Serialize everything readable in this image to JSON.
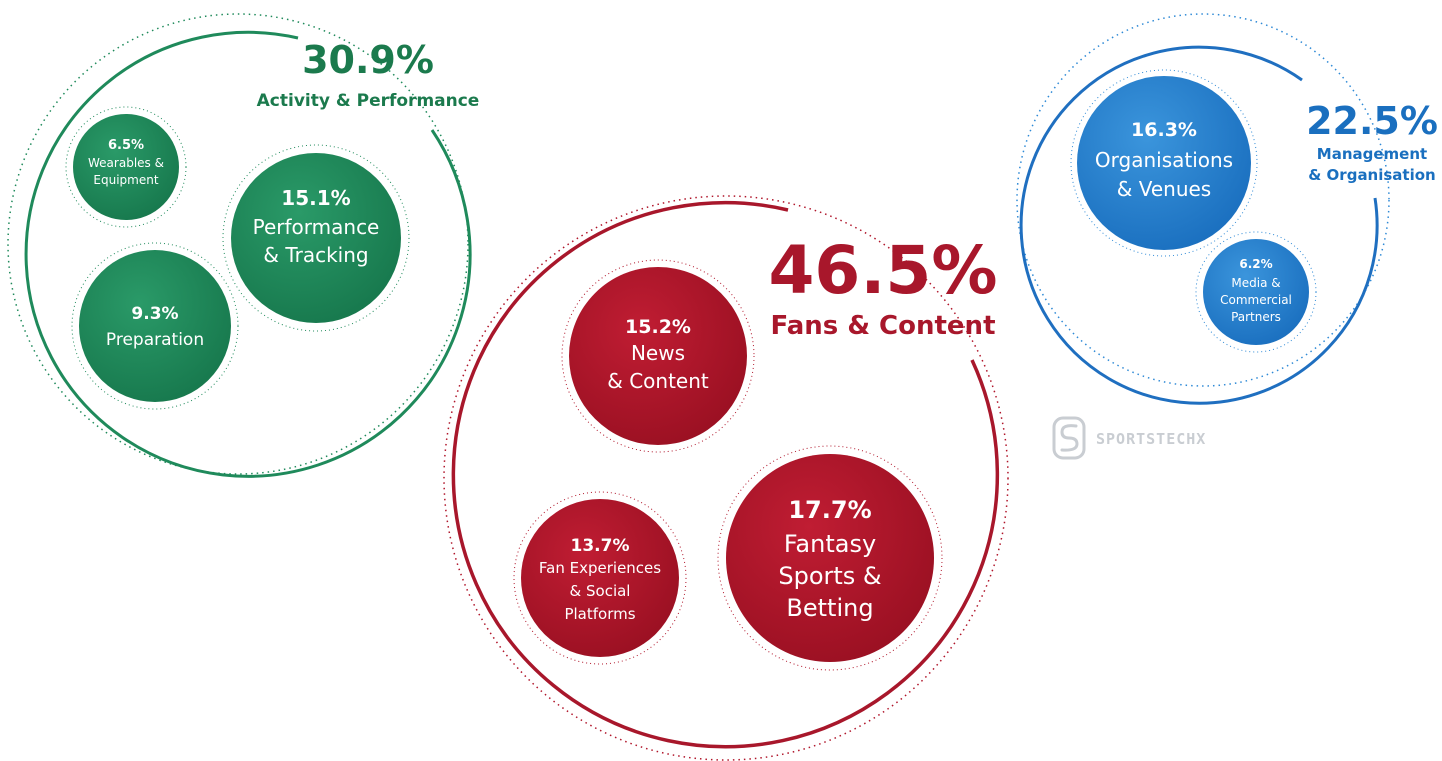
{
  "colors": {
    "green": "#1f8a5b",
    "green_dark": "#17784d",
    "red": "#b0152a",
    "red_dark": "#9a1022",
    "blue": "#2f8ad6",
    "blue_dark": "#1a6fbf",
    "logo_gray": "#c9cdd2"
  },
  "groups": [
    {
      "id": "activity",
      "percent": "30.9%",
      "label_lines": [
        "Activity & Performance"
      ],
      "color_key": "green",
      "segments": [
        {
          "percent": "6.5%",
          "label_lines": [
            "Wearables &",
            "Equipment"
          ]
        },
        {
          "percent": "15.1%",
          "label_lines": [
            "Performance",
            "& Tracking"
          ]
        },
        {
          "percent": "9.3%",
          "label_lines": [
            "Preparation"
          ]
        }
      ]
    },
    {
      "id": "fans",
      "percent": "46.5%",
      "label_lines": [
        "Fans & Content"
      ],
      "color_key": "red",
      "segments": [
        {
          "percent": "15.2%",
          "label_lines": [
            "News",
            "& Content"
          ]
        },
        {
          "percent": "13.7%",
          "label_lines": [
            "Fan Experiences",
            "& Social",
            "Platforms"
          ]
        },
        {
          "percent": "17.7%",
          "label_lines": [
            "Fantasy",
            "Sports &",
            "Betting"
          ]
        }
      ]
    },
    {
      "id": "management",
      "percent": "22.5%",
      "label_lines": [
        "Management",
        "& Organisation"
      ],
      "color_key": "blue",
      "segments": [
        {
          "percent": "16.3%",
          "label_lines": [
            "Organisations",
            "& Venues"
          ]
        },
        {
          "percent": "6.2%",
          "label_lines": [
            "Media &",
            "Commercial",
            "Partners"
          ]
        }
      ]
    }
  ],
  "logo": {
    "text": "SPORTSTECHX",
    "icon": "sportstechx-s-logo-icon"
  }
}
